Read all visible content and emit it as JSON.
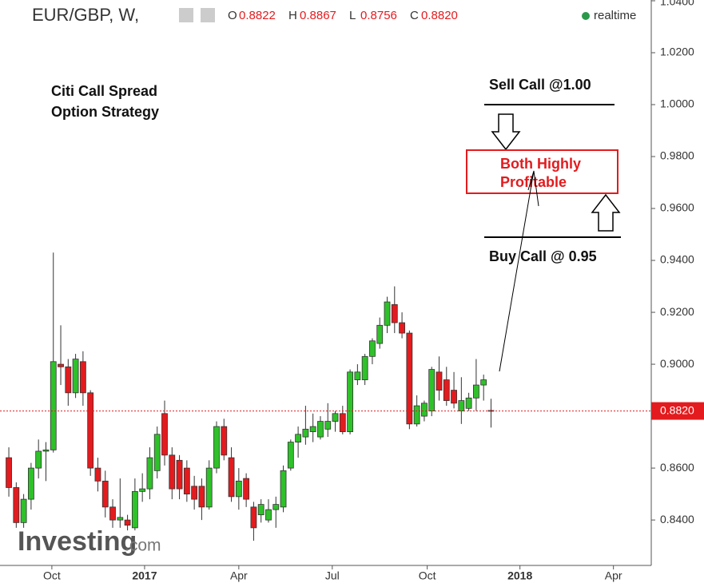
{
  "chart_data": {
    "type": "candlestick",
    "title": "EUR/GBP, W,",
    "ohlc_header": [
      {
        "label": "O",
        "value": "0.8822"
      },
      {
        "label": "H",
        "value": "0.8867"
      },
      {
        "label": "L",
        "value": "0.8756"
      },
      {
        "label": "C",
        "value": "0.8820"
      }
    ],
    "status": "realtime",
    "x": [
      0,
      1,
      2,
      3,
      4,
      5,
      6,
      7,
      8,
      9,
      10,
      11,
      12,
      13,
      14,
      15,
      16,
      17,
      18,
      19,
      20,
      21,
      22,
      23,
      24,
      25,
      26,
      27,
      28,
      29,
      30,
      31,
      32,
      33,
      34,
      35,
      36,
      37,
      38,
      39,
      40,
      41,
      42,
      43,
      44,
      45,
      46,
      47,
      48,
      49,
      50,
      51,
      52,
      53,
      54,
      55,
      56,
      57,
      58,
      59,
      60,
      61,
      62,
      63,
      64,
      65
    ],
    "open": [
      0.864,
      0.8525,
      0.839,
      0.848,
      0.86,
      0.8665,
      0.867,
      0.9,
      0.899,
      0.889,
      0.901,
      0.889,
      0.86,
      0.855,
      0.845,
      0.84,
      0.84,
      0.837,
      0.851,
      0.852,
      0.859,
      0.881,
      0.865,
      0.863,
      0.86,
      0.853,
      0.853,
      0.845,
      0.86,
      0.876,
      0.864,
      0.849,
      0.856,
      0.845,
      0.842,
      0.84,
      0.844,
      0.845,
      0.86,
      0.87,
      0.872,
      0.874,
      0.872,
      0.875,
      0.878,
      0.881,
      0.874,
      0.894,
      0.894,
      0.903,
      0.908,
      0.915,
      0.923,
      0.916,
      0.912,
      0.877,
      0.88,
      0.882,
      0.897,
      0.894,
      0.89,
      0.882,
      0.883,
      0.887,
      0.892,
      0.8822
    ],
    "high": [
      0.868,
      0.8545,
      0.85,
      0.862,
      0.871,
      0.87,
      0.943,
      0.915,
      0.902,
      0.904,
      0.905,
      0.89,
      0.864,
      0.859,
      0.848,
      0.856,
      0.842,
      0.856,
      0.858,
      0.868,
      0.876,
      0.886,
      0.868,
      0.865,
      0.863,
      0.857,
      0.856,
      0.863,
      0.878,
      0.879,
      0.868,
      0.86,
      0.858,
      0.847,
      0.848,
      0.848,
      0.849,
      0.861,
      0.871,
      0.876,
      0.884,
      0.881,
      0.88,
      0.885,
      0.882,
      0.884,
      0.898,
      0.9,
      0.904,
      0.91,
      0.918,
      0.926,
      0.93,
      0.92,
      0.913,
      0.888,
      0.886,
      0.899,
      0.903,
      0.899,
      0.897,
      0.895,
      0.889,
      0.902,
      0.896,
      0.8867
    ],
    "low": [
      0.849,
      0.837,
      0.837,
      0.844,
      0.856,
      0.855,
      0.866,
      0.892,
      0.884,
      0.887,
      0.884,
      0.857,
      0.851,
      0.841,
      0.837,
      0.837,
      0.836,
      0.836,
      0.847,
      0.848,
      0.856,
      0.861,
      0.848,
      0.848,
      0.847,
      0.844,
      0.84,
      0.844,
      0.858,
      0.863,
      0.847,
      0.844,
      0.845,
      0.832,
      0.839,
      0.839,
      0.837,
      0.843,
      0.859,
      0.864,
      0.869,
      0.87,
      0.871,
      0.872,
      0.874,
      0.873,
      0.873,
      0.892,
      0.892,
      0.9,
      0.906,
      0.912,
      0.912,
      0.91,
      0.875,
      0.876,
      0.878,
      0.88,
      0.886,
      0.884,
      0.883,
      0.877,
      0.882,
      0.882,
      0.886,
      0.8756
    ],
    "close": [
      0.8525,
      0.839,
      0.848,
      0.86,
      0.8665,
      0.867,
      0.901,
      0.899,
      0.889,
      0.902,
      0.889,
      0.86,
      0.855,
      0.845,
      0.84,
      0.841,
      0.838,
      0.851,
      0.852,
      0.864,
      0.873,
      0.865,
      0.852,
      0.852,
      0.85,
      0.848,
      0.845,
      0.86,
      0.876,
      0.865,
      0.849,
      0.855,
      0.848,
      0.837,
      0.846,
      0.844,
      0.846,
      0.859,
      0.87,
      0.873,
      0.875,
      0.876,
      0.878,
      0.878,
      0.881,
      0.874,
      0.897,
      0.897,
      0.903,
      0.909,
      0.915,
      0.924,
      0.916,
      0.912,
      0.877,
      0.884,
      0.885,
      0.898,
      0.89,
      0.886,
      0.885,
      0.886,
      0.887,
      0.892,
      0.894,
      0.882
    ],
    "up_color": "#2fc12a",
    "down_color": "#e31b1e",
    "xlim": [
      -1.19,
      86.6
    ],
    "ylim": [
      0.8225,
      1.0403
    ],
    "xticks": [
      {
        "value": 5.8,
        "label": "Oct"
      },
      {
        "value": 18.3,
        "label": "2017"
      },
      {
        "value": 31.0,
        "label": "Apr"
      },
      {
        "value": 43.6,
        "label": "Jul"
      },
      {
        "value": 56.4,
        "label": "Oct"
      },
      {
        "value": 68.9,
        "label": "2018"
      },
      {
        "value": 81.5,
        "label": "Apr"
      }
    ],
    "yticks": [
      {
        "value": 0.84,
        "label": "0.8400"
      },
      {
        "value": 0.86,
        "label": "0.8600"
      },
      {
        "value": 0.88,
        "label": "0.8800"
      },
      {
        "value": 0.9,
        "label": "0.9000"
      },
      {
        "value": 0.92,
        "label": "0.9200"
      },
      {
        "value": 0.94,
        "label": "0.9400"
      },
      {
        "value": 0.96,
        "label": "0.9600"
      },
      {
        "value": 0.98,
        "label": "0.9800"
      },
      {
        "value": 1.0,
        "label": "1.0000"
      },
      {
        "value": 1.02,
        "label": "1.0200"
      },
      {
        "value": 1.04,
        "label": "1.0400"
      }
    ],
    "last_price": {
      "value": 0.882,
      "label": "0.8820"
    },
    "annotations": {
      "strategy": [
        "Citi Call Spread",
        "Option Strategy"
      ],
      "sell": "Sell Call @1.00",
      "buy": "Buy Call @ 0.95",
      "result": [
        "Both Highly",
        "Profitable"
      ]
    },
    "watermark": [
      "Investing",
      ".com"
    ]
  }
}
